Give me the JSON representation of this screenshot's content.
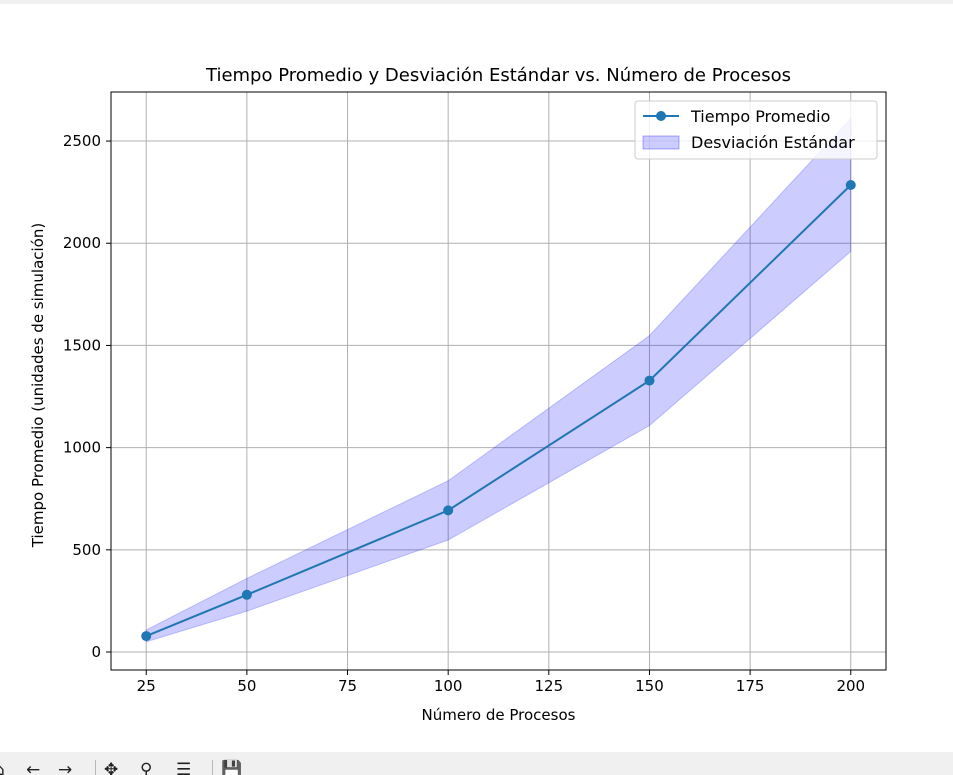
{
  "window": {
    "toolbar_icons": [
      "home-icon",
      "back-icon",
      "forward-icon",
      "pan-icon",
      "zoom-icon",
      "configure-subplots-icon",
      "save-icon"
    ]
  },
  "chart_data": {
    "type": "line",
    "title": "Tiempo Promedio y Desviación Estándar vs. Número de Procesos",
    "xlabel": "Número de Procesos",
    "ylabel": "Tiempo Promedio (unidades de simulación)",
    "x": [
      25,
      50,
      100,
      150,
      200
    ],
    "series": [
      {
        "name": "Tiempo Promedio",
        "type": "line",
        "marker": "circle",
        "color": "#1f77b4",
        "values": [
          78,
          280,
          693,
          1328,
          2285
        ]
      },
      {
        "name": "Desviación Estándar",
        "type": "band",
        "color": "#0000ff",
        "opacity": 0.2,
        "lower": [
          50,
          200,
          548,
          1108,
          1960
        ],
        "upper": [
          108,
          360,
          838,
          1548,
          2610
        ]
      }
    ],
    "xlim": [
      16.25,
      208.75
    ],
    "ylim": [
      -88,
      2740
    ],
    "xticks": [
      25,
      50,
      75,
      100,
      125,
      150,
      175,
      200
    ],
    "yticks": [
      0,
      500,
      1000,
      1500,
      2000,
      2500
    ],
    "grid": true,
    "legend_position": "upper right"
  }
}
